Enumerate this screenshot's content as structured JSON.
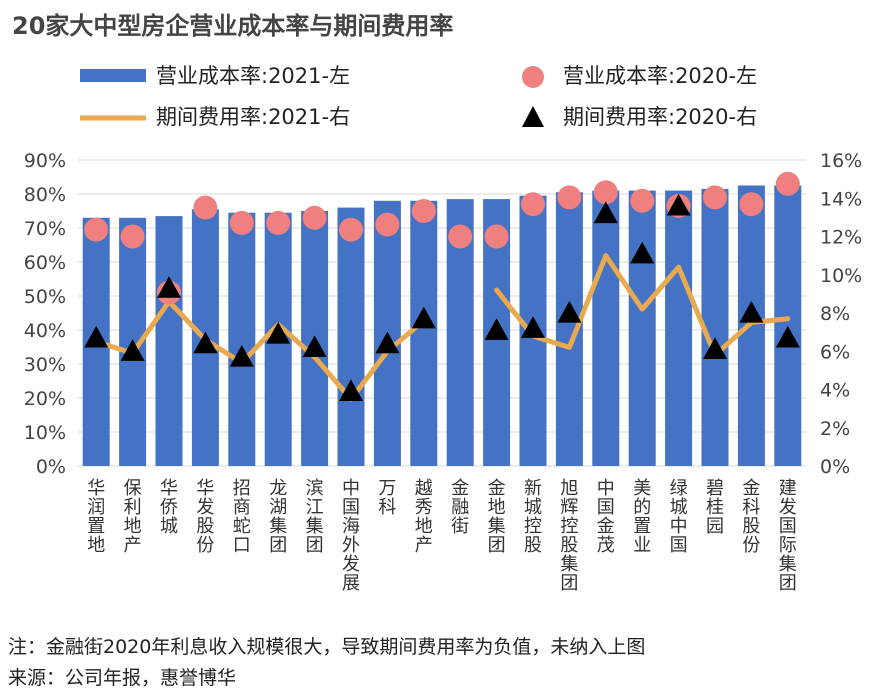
{
  "chart_data": {
    "type": "bar",
    "title": "20家大中型房企营业成本率与期间费用率",
    "categories": [
      "华润置地",
      "保利地产",
      "华侨城",
      "华发股份",
      "招商蛇口",
      "龙湖集团",
      "滨江集团",
      "中国海外发展",
      "万科",
      "越秀地产",
      "金融街",
      "金地集团",
      "新城控股",
      "旭辉控股集团",
      "中国金茂",
      "美的置业",
      "绿城中国",
      "碧桂园",
      "金科股份",
      "建发国际集团"
    ],
    "series": [
      {
        "name": "营业成本率:2021-左",
        "kind": "bar",
        "axis": "left",
        "color": "#4472c4",
        "values": [
          73.0,
          73.0,
          73.5,
          75.5,
          74.5,
          74.5,
          75.0,
          76.0,
          78.0,
          78.0,
          78.5,
          78.5,
          79.5,
          80.5,
          81.0,
          81.0,
          81.0,
          81.5,
          82.5,
          82.5
        ]
      },
      {
        "name": "营业成本率:2020-左",
        "kind": "dot",
        "axis": "left",
        "color": "#f08080",
        "values": [
          69.5,
          67.5,
          51.0,
          76.0,
          71.5,
          71.5,
          73.0,
          69.5,
          71.0,
          75.0,
          67.5,
          67.5,
          77.0,
          79.0,
          80.5,
          78.0,
          76.5,
          79.0,
          77.0,
          83.0
        ]
      },
      {
        "name": "期间费用率:2021-右",
        "kind": "line",
        "axis": "right",
        "color": "#e9a94e",
        "values": [
          6.5,
          5.9,
          8.6,
          6.6,
          5.4,
          7.4,
          5.7,
          3.5,
          6.0,
          7.6,
          null,
          9.2,
          6.8,
          6.2,
          11.0,
          8.2,
          10.4,
          5.8,
          7.5,
          7.7
        ]
      },
      {
        "name": "期间费用率:2020-右",
        "kind": "triangle",
        "axis": "right",
        "color": "#000000",
        "values": [
          6.7,
          6.0,
          9.3,
          6.4,
          5.7,
          6.9,
          6.2,
          3.9,
          6.4,
          7.7,
          null,
          7.1,
          7.2,
          8.0,
          13.2,
          11.1,
          13.6,
          6.1,
          8.0,
          6.7
        ]
      }
    ],
    "left_axis": {
      "min": 0,
      "max": 90,
      "step": 10,
      "format": "percent"
    },
    "right_axis": {
      "min": 0,
      "max": 16,
      "step": 2,
      "format": "percent"
    },
    "legend_position": "top",
    "grid": true
  },
  "footnotes": {
    "note": "注：金融街2020年利息收入规模很大，导致期间费用率为负值，未纳入上图",
    "source": "来源：公司年报，惠誉博华"
  }
}
